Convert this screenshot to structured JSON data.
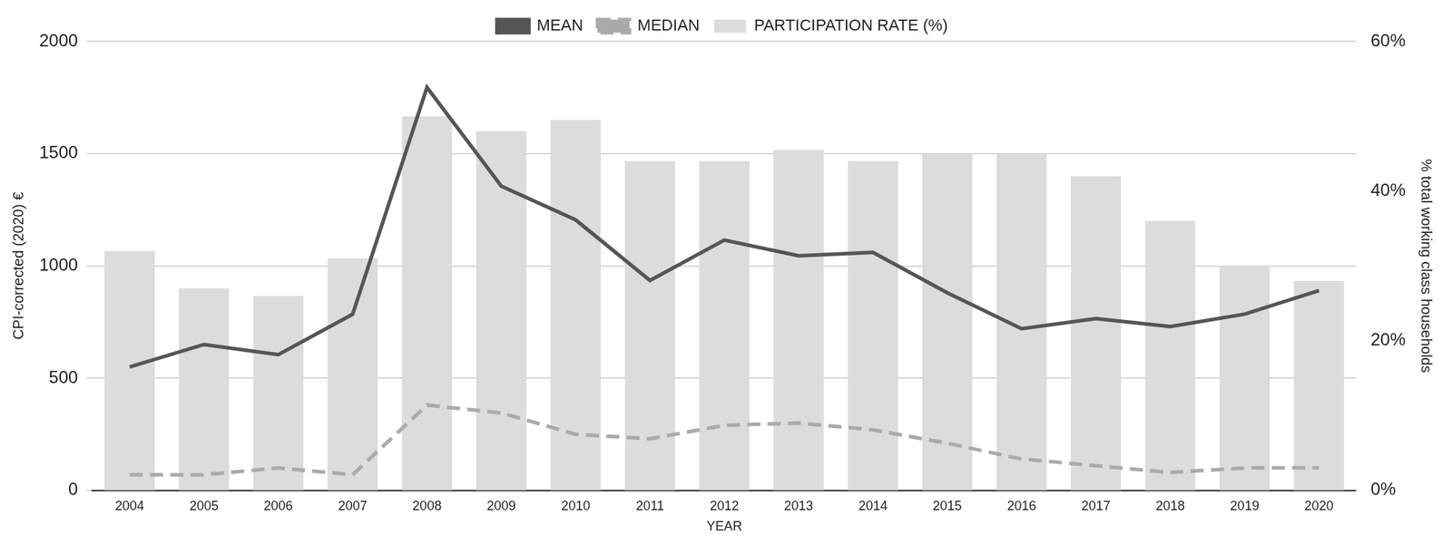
{
  "chart_data": {
    "type": "bar",
    "x_label": "YEAR",
    "y_label": "CPI-corrected (2020) €",
    "y2_label": "% total working class households",
    "categories": [
      "2004",
      "2005",
      "2006",
      "2007",
      "2008",
      "2009",
      "2010",
      "2011",
      "2012",
      "2013",
      "2014",
      "2015",
      "2016",
      "2017",
      "2018",
      "2019",
      "2020"
    ],
    "series": [
      {
        "name": "PARTICIPATION RATE (%)",
        "type": "bar",
        "axis": "y2",
        "color": "#dcdcdc",
        "values": [
          32,
          27,
          26,
          31,
          50,
          48,
          49.5,
          44,
          44,
          45.5,
          44,
          45,
          45,
          42,
          36,
          30,
          28
        ]
      },
      {
        "name": "MEAN",
        "type": "line",
        "color": "#555555",
        "line_style": "solid",
        "values": [
          550,
          650,
          605,
          785,
          1795,
          1355,
          1205,
          935,
          1115,
          1045,
          1060,
          880,
          720,
          765,
          730,
          785,
          890
        ]
      },
      {
        "name": "MEDIAN",
        "type": "line",
        "color": "#aaaaaa",
        "line_style": "dashed",
        "values": [
          70,
          70,
          100,
          70,
          380,
          345,
          250,
          230,
          290,
          300,
          270,
          210,
          140,
          110,
          80,
          100,
          100
        ]
      }
    ],
    "ylim": [
      0,
      2000
    ],
    "yticks": [
      0,
      500,
      1000,
      1500,
      2000
    ],
    "y2lim": [
      0,
      60
    ],
    "y2ticks": [
      {
        "value": 0,
        "label": "0%"
      },
      {
        "value": 20,
        "label": "20%"
      },
      {
        "value": 40,
        "label": "40%"
      },
      {
        "value": 60,
        "label": "60%"
      }
    ],
    "grid": true,
    "legend": "top"
  }
}
